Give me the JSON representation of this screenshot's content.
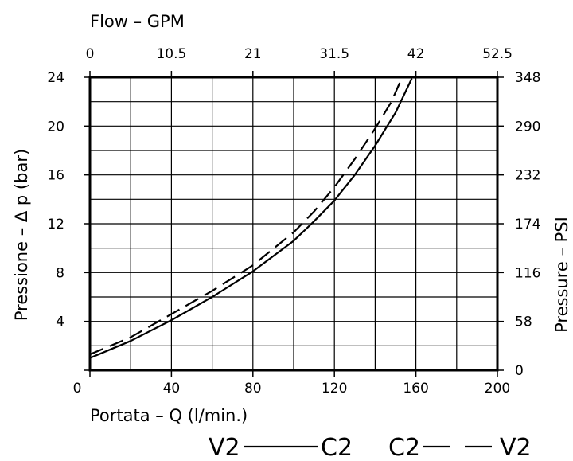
{
  "chart_data": {
    "type": "line",
    "x_bottom": {
      "label": "Portata  –  Q  (l/min.)",
      "ticks": [
        0,
        40,
        80,
        120,
        160,
        200
      ],
      "range": [
        0,
        200
      ]
    },
    "x_top": {
      "label": "Flow  –  GPM",
      "ticks": [
        "0",
        "10.5",
        "21",
        "31.5",
        "42",
        "52.5"
      ]
    },
    "y_left": {
      "label": "Pressione  –  Δ p  (bar)",
      "ticks": [
        0,
        4,
        8,
        12,
        16,
        20,
        24
      ],
      "range": [
        0,
        24
      ]
    },
    "y_right": {
      "label": "Pressure  –  PSI",
      "ticks": [
        "0",
        "58",
        "116",
        "174",
        "232",
        "290",
        "348"
      ]
    },
    "grid": true,
    "grid_divisions": {
      "x": 10,
      "y": 12
    },
    "series": [
      {
        "name": "V2—C2",
        "style": "solid",
        "x": [
          0,
          10,
          20,
          40,
          60,
          80,
          100,
          110,
          120,
          130,
          140,
          150,
          158
        ],
        "y": [
          1.0,
          1.7,
          2.4,
          4.1,
          6.0,
          8.1,
          10.6,
          12.2,
          13.9,
          16.0,
          18.4,
          21.1,
          23.9
        ]
      },
      {
        "name": "C2—V2",
        "style": "dashed",
        "x": [
          0,
          10,
          20,
          40,
          60,
          80,
          100,
          110,
          120,
          130,
          140,
          148,
          153
        ],
        "y": [
          1.3,
          2.0,
          2.7,
          4.6,
          6.5,
          8.6,
          11.3,
          13.0,
          15.0,
          17.3,
          19.8,
          22.0,
          23.9
        ]
      }
    ],
    "legend": [
      {
        "left": "V2",
        "right": "C2",
        "style": "solid"
      },
      {
        "left": "C2",
        "right": "V2",
        "style": "dashed"
      }
    ]
  }
}
